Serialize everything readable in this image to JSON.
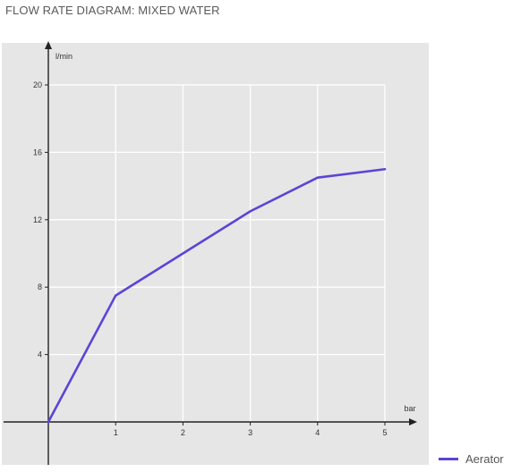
{
  "chart_data": {
    "type": "line",
    "title": "FLOW RATE DIAGRAM: MIXED WATER",
    "xlabel": "bar",
    "ylabel": "l/min",
    "xlim": [
      0,
      5
    ],
    "ylim": [
      0,
      20
    ],
    "x_ticks": [
      "1",
      "2",
      "3",
      "4",
      "5"
    ],
    "y_ticks": [
      "4",
      "8",
      "12",
      "16",
      "20"
    ],
    "grid": true,
    "legend_position": "bottom-right",
    "series": [
      {
        "name": "Aerator",
        "color": "#5b45d6",
        "x": [
          0,
          1,
          2,
          3,
          4,
          5
        ],
        "y": [
          0,
          7.5,
          10,
          12.5,
          14.5,
          15
        ]
      }
    ]
  },
  "colors": {
    "panel": "#e6e6e6",
    "grid": "#ffffff",
    "axis": "#222222",
    "tick_text": "#333333",
    "title_text": "#5a5a5a"
  }
}
